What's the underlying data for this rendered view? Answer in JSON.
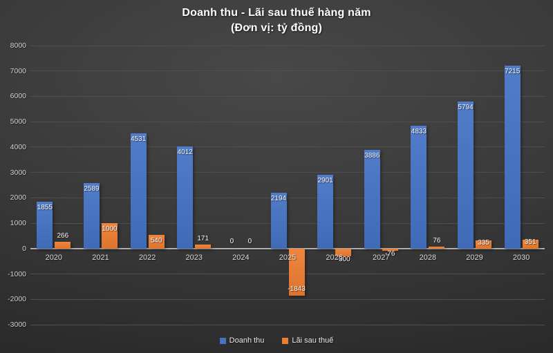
{
  "title": {
    "line1": "Doanh thu - Lãi sau thuế hàng năm",
    "line2": "(Đơn vị: tỷ đồng)"
  },
  "chart_data": {
    "type": "bar",
    "title": "Doanh thu - Lãi sau thuế hàng năm (Đơn vị: tỷ đồng)",
    "categories": [
      "2020",
      "2021",
      "2022",
      "2023",
      "2024",
      "2025",
      "2026",
      "2027",
      "2028",
      "2029",
      "2030"
    ],
    "series": [
      {
        "name": "Doanh thu",
        "color": "#4472C4",
        "values": [
          1855,
          2589,
          4531,
          4012,
          0,
          2194,
          2901,
          3886,
          4833,
          5794,
          7215
        ]
      },
      {
        "name": "Lãi sau thuế",
        "color": "#ED7D31",
        "values": [
          266,
          1000,
          540,
          171,
          0,
          -1843,
          -300,
          -76,
          76,
          335,
          351
        ]
      }
    ],
    "ylim": [
      -3000,
      8000
    ],
    "ytick_step": 1000,
    "yticks": [
      "8000",
      "7000",
      "6000",
      "5000",
      "4000",
      "3000",
      "2000",
      "1000",
      "0",
      "-1000",
      "-2000",
      "-3000"
    ],
    "grid": true,
    "legend_position": "bottom"
  },
  "colors": {
    "background_top": "#484848",
    "background_bottom": "#262626",
    "gridline": "#4f4f4f",
    "axis_line": "#b0b0b0",
    "tick_label": "#d0d0d0",
    "value_label": "#f5f5f5",
    "title_text": "#ffffff",
    "series_blue": "#4472C4",
    "series_orange": "#ED7D31"
  }
}
